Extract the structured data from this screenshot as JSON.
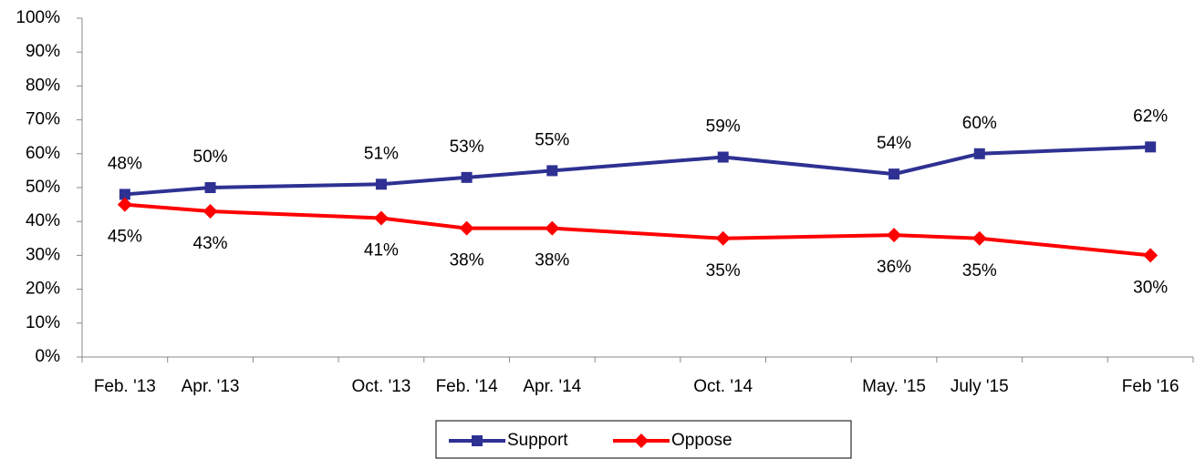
{
  "chart_data": {
    "type": "line",
    "categories": [
      "Feb. '13",
      "Apr. '13",
      null,
      "Oct. '13",
      "Feb. '14",
      "Apr. '14",
      null,
      "Oct. '14",
      null,
      "May. '15",
      "July '15",
      null,
      "Feb '16"
    ],
    "connect_gaps": true,
    "series": [
      {
        "name": "Support",
        "color": "#2e3192",
        "marker": "square",
        "values": [
          48,
          50,
          null,
          51,
          53,
          55,
          null,
          59,
          null,
          54,
          60,
          null,
          62
        ],
        "value_labels": [
          "48%",
          "50%",
          null,
          "51%",
          "53%",
          "55%",
          null,
          "59%",
          null,
          "54%",
          "60%",
          null,
          "62%"
        ],
        "label_position": "above"
      },
      {
        "name": "Oppose",
        "color": "#ff0000",
        "marker": "diamond",
        "values": [
          45,
          43,
          null,
          41,
          38,
          38,
          null,
          35,
          null,
          36,
          35,
          null,
          30
        ],
        "value_labels": [
          "45%",
          "43%",
          null,
          "41%",
          "38%",
          "38%",
          null,
          "35%",
          null,
          "36%",
          "35%",
          null,
          "30%"
        ],
        "label_position": "below"
      }
    ],
    "ylim": [
      0,
      100
    ],
    "yticks": [
      {
        "value": 0,
        "label": "0%"
      },
      {
        "value": 10,
        "label": "10%"
      },
      {
        "value": 20,
        "label": "20%"
      },
      {
        "value": 30,
        "label": "30%"
      },
      {
        "value": 40,
        "label": "40%"
      },
      {
        "value": 50,
        "label": "50%"
      },
      {
        "value": 60,
        "label": "60%"
      },
      {
        "value": 70,
        "label": "70%"
      },
      {
        "value": 80,
        "label": "80%"
      },
      {
        "value": 90,
        "label": "90%"
      },
      {
        "value": 100,
        "label": "100%"
      }
    ],
    "grid": false,
    "legend": "bottom"
  }
}
